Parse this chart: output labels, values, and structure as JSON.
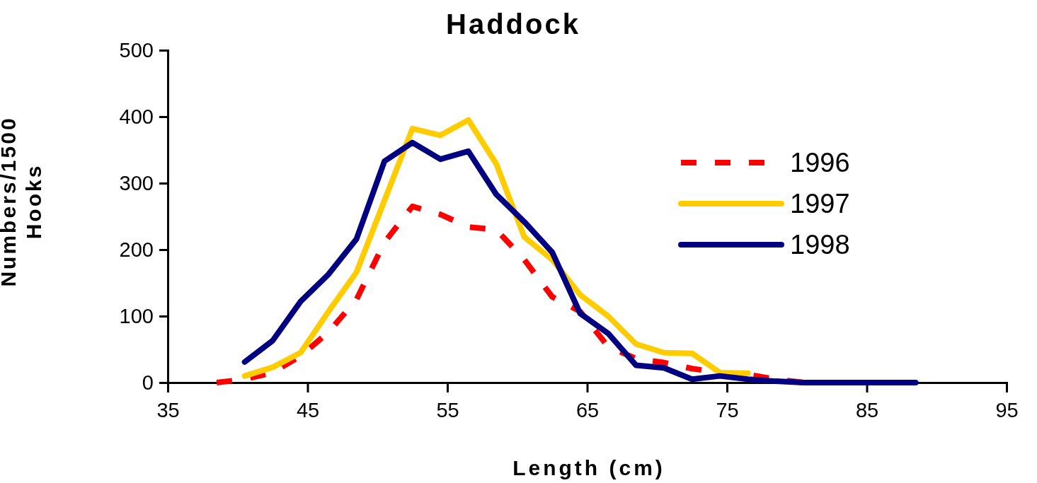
{
  "chart_data": {
    "type": "line",
    "title": "Haddock",
    "xlabel": "Length (cm)",
    "ylabel": "Numbers/1500 Hooks",
    "xlim": [
      35,
      95
    ],
    "xticks": [
      35,
      45,
      55,
      65,
      75,
      85,
      95
    ],
    "ylim": [
      0,
      500
    ],
    "yticks": [
      0,
      100,
      200,
      300,
      400,
      500
    ],
    "legend": "right",
    "grid": false,
    "series": [
      {
        "name": "1996",
        "color": "#ff0000",
        "line_style": "dashed",
        "x": [
          38.5,
          40.5,
          42.5,
          44.5,
          46.5,
          48.5,
          50.5,
          52.5,
          54.5,
          56.5,
          58.5,
          60.5,
          62.5,
          64.5,
          66.5,
          68.5,
          70.5,
          72.5,
          74.5,
          76.5,
          78.5,
          80.5
        ],
        "values": [
          0,
          5,
          15,
          40,
          76,
          125,
          211,
          265,
          253,
          234,
          230,
          185,
          129,
          107,
          54,
          36,
          30,
          21,
          15,
          12,
          5,
          0
        ]
      },
      {
        "name": "1997",
        "color": "#ffcc00",
        "line_style": "solid",
        "x": [
          40.5,
          42.5,
          44.5,
          46.5,
          48.5,
          50.5,
          52.5,
          54.5,
          56.5,
          58.5,
          60.5,
          62.5,
          64.5,
          66.5,
          68.5,
          70.5,
          72.5,
          74.5,
          76.5
        ],
        "values": [
          10,
          23,
          45,
          107,
          166,
          274,
          382,
          372,
          395,
          329,
          219,
          185,
          132,
          100,
          58,
          45,
          44,
          15,
          14
        ]
      },
      {
        "name": "1998",
        "color": "#000080",
        "line_style": "solid",
        "x": [
          40.5,
          42.5,
          44.5,
          46.5,
          48.5,
          50.5,
          52.5,
          54.5,
          56.5,
          58.5,
          60.5,
          62.5,
          64.5,
          66.5,
          68.5,
          70.5,
          72.5,
          74.5,
          76.5,
          78.5,
          80.5,
          82.5,
          84.5,
          86.5,
          88.5
        ],
        "values": [
          31,
          63,
          122,
          163,
          216,
          333,
          361,
          336,
          348,
          283,
          242,
          196,
          104,
          74,
          26,
          22,
          5,
          10,
          5,
          2,
          0,
          0,
          0,
          0,
          0
        ]
      }
    ]
  }
}
